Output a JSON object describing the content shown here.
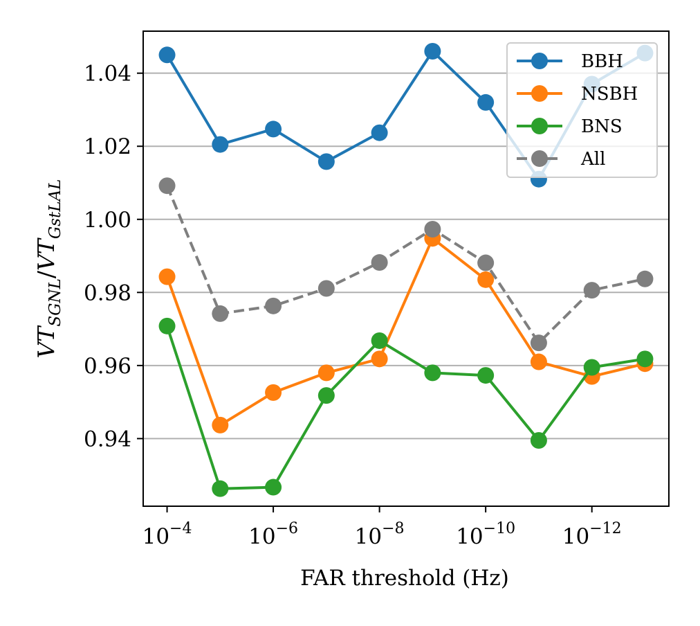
{
  "chart_data": {
    "type": "line",
    "title": "",
    "xlabel": "FAR threshold (Hz)",
    "ylabel": "VT_SGNL/VT_GstLAL",
    "ylabel_parts": {
      "vt1": "VT",
      "sub1": "SGNL",
      "slash": "/",
      "vt2": "VT",
      "sub2": "GstLAL"
    },
    "x_exponents": [
      -4,
      -5,
      -6,
      -7,
      -8,
      -9,
      -10,
      -11,
      -12,
      -13
    ],
    "xlim": [
      -3.55,
      -13.45
    ],
    "ylim": [
      0.9215,
      1.0515
    ],
    "x_ticks": [
      {
        "exp": -4,
        "label": "-4"
      },
      {
        "exp": -6,
        "label": "-6"
      },
      {
        "exp": -8,
        "label": "-8"
      },
      {
        "exp": -10,
        "label": "-10"
      },
      {
        "exp": -12,
        "label": "-12"
      }
    ],
    "x_tick_base": "10",
    "y_ticks": [
      {
        "value": 0.94,
        "label": "0.94"
      },
      {
        "value": 0.96,
        "label": "0.96"
      },
      {
        "value": 0.98,
        "label": "0.98"
      },
      {
        "value": 1.0,
        "label": "1.00"
      },
      {
        "value": 1.02,
        "label": "1.02"
      },
      {
        "value": 1.04,
        "label": "1.04"
      }
    ],
    "grid": "horizontal",
    "legend_position": "top-right",
    "series": [
      {
        "name": "BBH",
        "color": "#1f77b4",
        "dashed": false,
        "values": [
          1.045,
          1.0205,
          1.0247,
          1.0158,
          1.0237,
          1.046,
          1.032,
          1.011,
          1.037,
          1.0455
        ]
      },
      {
        "name": "NSBH",
        "color": "#ff7f0e",
        "dashed": false,
        "values": [
          0.9843,
          0.9437,
          0.9526,
          0.958,
          0.9618,
          0.9948,
          0.9835,
          0.961,
          0.957,
          0.9605
        ]
      },
      {
        "name": "BNS",
        "color": "#2ca02c",
        "dashed": false,
        "values": [
          0.9708,
          0.9263,
          0.9267,
          0.9518,
          0.9668,
          0.958,
          0.9573,
          0.9395,
          0.9595,
          0.9618
        ]
      },
      {
        "name": "All",
        "color": "#7f7f7f",
        "dashed": true,
        "values": [
          1.0092,
          0.9742,
          0.9763,
          0.9811,
          0.9882,
          0.9973,
          0.9881,
          0.9662,
          0.9806,
          0.9837
        ]
      }
    ]
  }
}
